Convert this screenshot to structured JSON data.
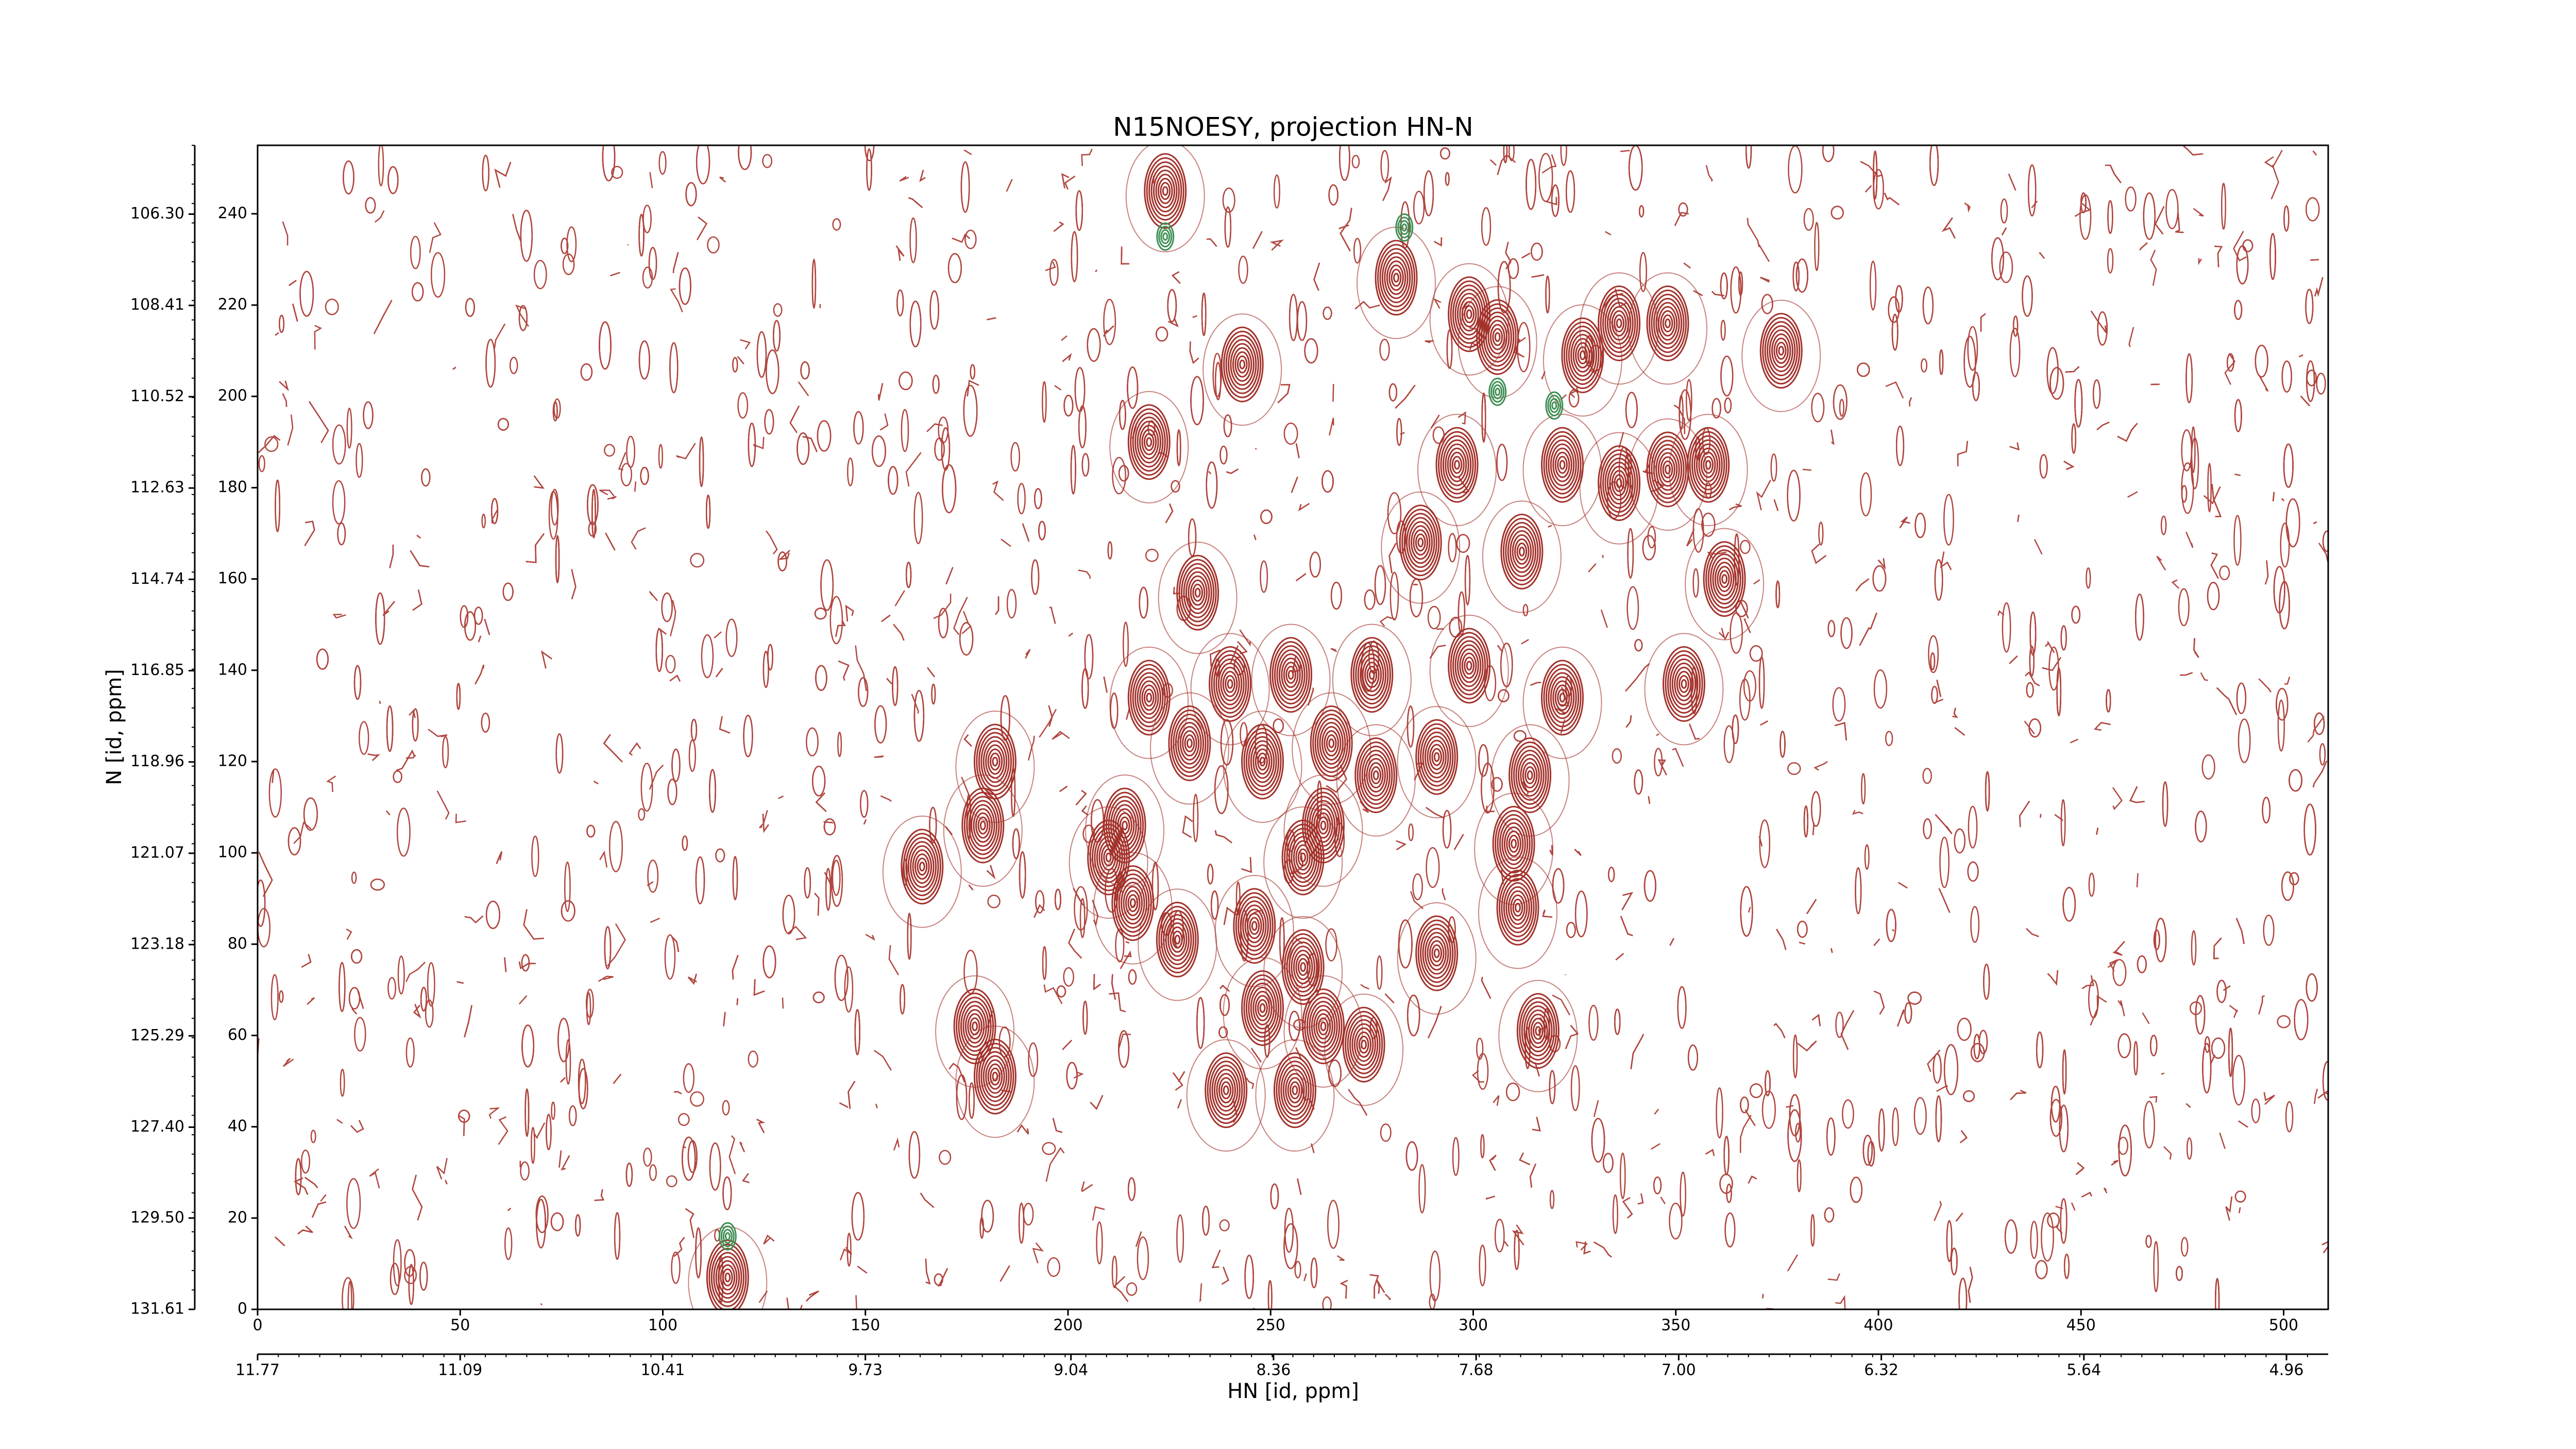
{
  "chart_data": {
    "type": "contour",
    "title": "N15NOESY, projection HN-N",
    "xlabel": "HN [id, ppm]",
    "ylabel": "N [id, ppm]",
    "xlim": [
      0,
      511
    ],
    "ylim": [
      0,
      255
    ],
    "xticks": [
      0,
      50,
      100,
      150,
      200,
      250,
      300,
      350,
      400,
      450,
      500
    ],
    "yticks": [
      0,
      20,
      40,
      60,
      80,
      100,
      120,
      140,
      160,
      180,
      200,
      220,
      240
    ],
    "x2lim": [
      11.77,
      4.82
    ],
    "x2ticks": [
      11.77,
      11.09,
      10.41,
      9.73,
      9.04,
      8.36,
      7.68,
      {
        "value": 7,
        "label": "7.00"
      },
      6.32,
      5.64,
      4.96
    ],
    "y2lim": [
      131.61,
      104.71
    ],
    "y2ticks": [
      131.61,
      {
        "value": 129.5,
        "label": "129.50"
      },
      {
        "value": 127.4,
        "label": "127.40"
      },
      125.29,
      123.18,
      121.07,
      118.96,
      116.85,
      114.74,
      112.63,
      110.52,
      108.41,
      {
        "value": 106.3,
        "label": "106.30"
      }
    ],
    "series": [
      {
        "color": "#a3322b",
        "x": [
          224,
          281,
          299,
          306,
          243,
          327,
          336,
          348,
          376,
          220,
          296,
          322,
          336,
          348,
          358,
          287,
          312,
          362,
          232,
          220,
          240,
          255,
          275,
          299,
          322,
          352,
          182,
          230,
          248,
          265,
          276,
          291,
          314,
          179,
          164,
          214,
          210,
          258,
          263,
          310,
          216,
          311,
          227,
          246,
          291,
          258,
          248,
          177,
          263,
          273,
          316,
          182,
          239,
          256,
          116
        ],
        "y": [
          245,
          226,
          218,
          213,
          207,
          209,
          216,
          216,
          210,
          190,
          185,
          185,
          181,
          184,
          185,
          168,
          166,
          160,
          157,
          134,
          137,
          139,
          139,
          141,
          134,
          137,
          120,
          124,
          120,
          124,
          117,
          121,
          117,
          106,
          97,
          106,
          99,
          99,
          106,
          102,
          89,
          88,
          81,
          84,
          78,
          75,
          66,
          62,
          62,
          58,
          61,
          51,
          48,
          48,
          7
        ]
      },
      {
        "color": "#3f8f55",
        "x": [
          283,
          224,
          306,
          320,
          116
        ],
        "y": [
          237,
          235,
          201,
          198,
          16
        ]
      }
    ]
  }
}
